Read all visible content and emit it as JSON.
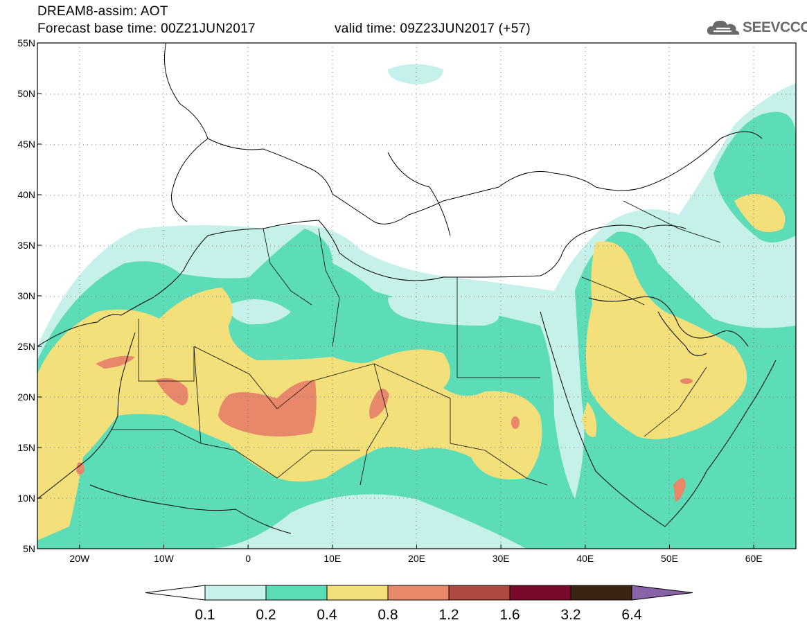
{
  "header": {
    "line1": "DREAM8-assim: AOT",
    "line2": "Forecast base time: 00Z21JUN2017",
    "line3": "valid time: 09Z23JUN2017 (+57)",
    "logo_text": "SEEVCCC"
  },
  "map": {
    "lon_range": [
      -25,
      65
    ],
    "lat_range": [
      5,
      55
    ],
    "lat_labels": [
      "55N",
      "50N",
      "45N",
      "40N",
      "35N",
      "30N",
      "25N",
      "20N",
      "15N",
      "10N",
      "5N"
    ],
    "lon_labels": [
      "20W",
      "10W",
      "0",
      "10E",
      "20E",
      "30E",
      "40E",
      "50E",
      "60E"
    ]
  },
  "colorbar": {
    "labels": [
      "0.1",
      "0.2",
      "0.4",
      "0.8",
      "1.2",
      "1.6",
      "3.2",
      "6.4"
    ],
    "colors": [
      "#c5f1ea",
      "#5ddcb8",
      "#f4e07a",
      "#e8876a",
      "#b04a3e",
      "#7a0a2a",
      "#3a2412",
      "#8a62a8"
    ],
    "under_color": "#ffffff"
  },
  "colors": {
    "c1": "#c5f1ea",
    "c2": "#5ddcb8",
    "c3": "#f4e07a",
    "c4": "#e8876a"
  }
}
